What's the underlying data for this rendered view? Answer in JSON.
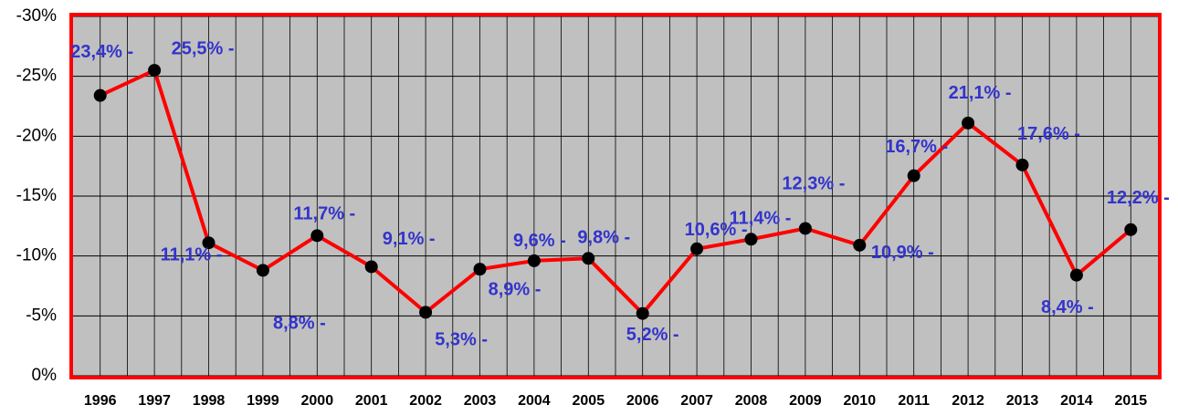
{
  "chart_data": {
    "type": "line",
    "categories": [
      "1996",
      "1997",
      "1998",
      "1999",
      "2000",
      "2001",
      "2002",
      "2003",
      "2004",
      "2005",
      "2006",
      "2007",
      "2008",
      "2009",
      "2010",
      "2011",
      "2012",
      "2013",
      "2014",
      "2015"
    ],
    "series": [
      {
        "color": "#ff0000",
        "values": [
          -23.4,
          -25.5,
          -11.1,
          -8.8,
          -11.7,
          -9.1,
          -5.3,
          -8.9,
          -9.6,
          -9.8,
          -5.2,
          -10.6,
          -11.4,
          -12.3,
          -10.9,
          -16.7,
          -21.1,
          -17.6,
          -8.4,
          -12.2
        ],
        "value_labels": [
          "23,4% -",
          "25,5% -",
          "11,1% -",
          "8,8% -",
          "11,7% -",
          "9,1% -",
          "5,3% -",
          "8,9% -",
          "9,6% -",
          "9,8% -",
          "5,2% -",
          "10,6% -",
          "11,4% -",
          "12,3% -",
          "10,9% -",
          "16,7% -",
          "21,1% -",
          "17,6% -",
          "8,4% -",
          "12,2% -"
        ]
      }
    ],
    "ylim": [
      0,
      -30
    ],
    "yticks": [
      {
        "value": 0,
        "label": "0%"
      },
      {
        "value": -5,
        "label": "-5%"
      },
      {
        "value": -10,
        "label": "-10%"
      },
      {
        "value": -15,
        "label": "-15%"
      },
      {
        "value": -20,
        "label": "-20%"
      },
      {
        "value": -25,
        "label": "-25%"
      },
      {
        "value": -30,
        "label": "-30%"
      }
    ],
    "grid": true
  }
}
